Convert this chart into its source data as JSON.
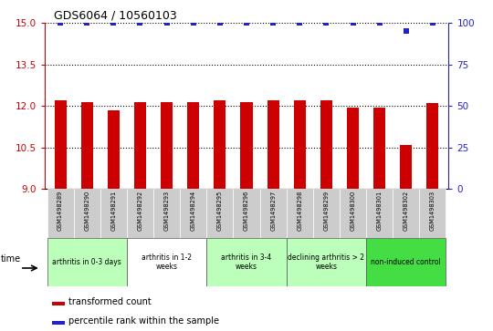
{
  "title": "GDS6064 / 10560103",
  "samples": [
    "GSM1498289",
    "GSM1498290",
    "GSM1498291",
    "GSM1498292",
    "GSM1498293",
    "GSM1498294",
    "GSM1498295",
    "GSM1498296",
    "GSM1498297",
    "GSM1498298",
    "GSM1498299",
    "GSM1498300",
    "GSM1498301",
    "GSM1498302",
    "GSM1498303"
  ],
  "red_values": [
    12.2,
    12.15,
    11.85,
    12.15,
    12.15,
    12.15,
    12.2,
    12.15,
    12.2,
    12.2,
    12.2,
    11.95,
    11.95,
    10.6,
    12.1
  ],
  "blue_values": [
    100,
    100,
    100,
    100,
    100,
    100,
    100,
    100,
    100,
    100,
    100,
    100,
    100,
    95,
    100
  ],
  "ylim_left": [
    9,
    15
  ],
  "ylim_right": [
    0,
    100
  ],
  "yticks_left": [
    9,
    10.5,
    12,
    13.5,
    15
  ],
  "yticks_right": [
    0,
    25,
    50,
    75,
    100
  ],
  "groups": [
    {
      "label": "arthritis in 0-3 days",
      "start": 0,
      "end": 3,
      "color": "#bbffbb"
    },
    {
      "label": "arthritis in 1-2\nweeks",
      "start": 3,
      "end": 6,
      "color": "#ffffff"
    },
    {
      "label": "arthritis in 3-4\nweeks",
      "start": 6,
      "end": 9,
      "color": "#bbffbb"
    },
    {
      "label": "declining arthritis > 2\nweeks",
      "start": 9,
      "end": 12,
      "color": "#bbffbb"
    },
    {
      "label": "non-induced control",
      "start": 12,
      "end": 15,
      "color": "#44dd44"
    }
  ],
  "bar_color": "#cc0000",
  "blue_color": "#2222cc",
  "sample_box_color": "#cccccc",
  "title_color": "#000000",
  "title_fontsize": 9,
  "bar_width": 0.45
}
